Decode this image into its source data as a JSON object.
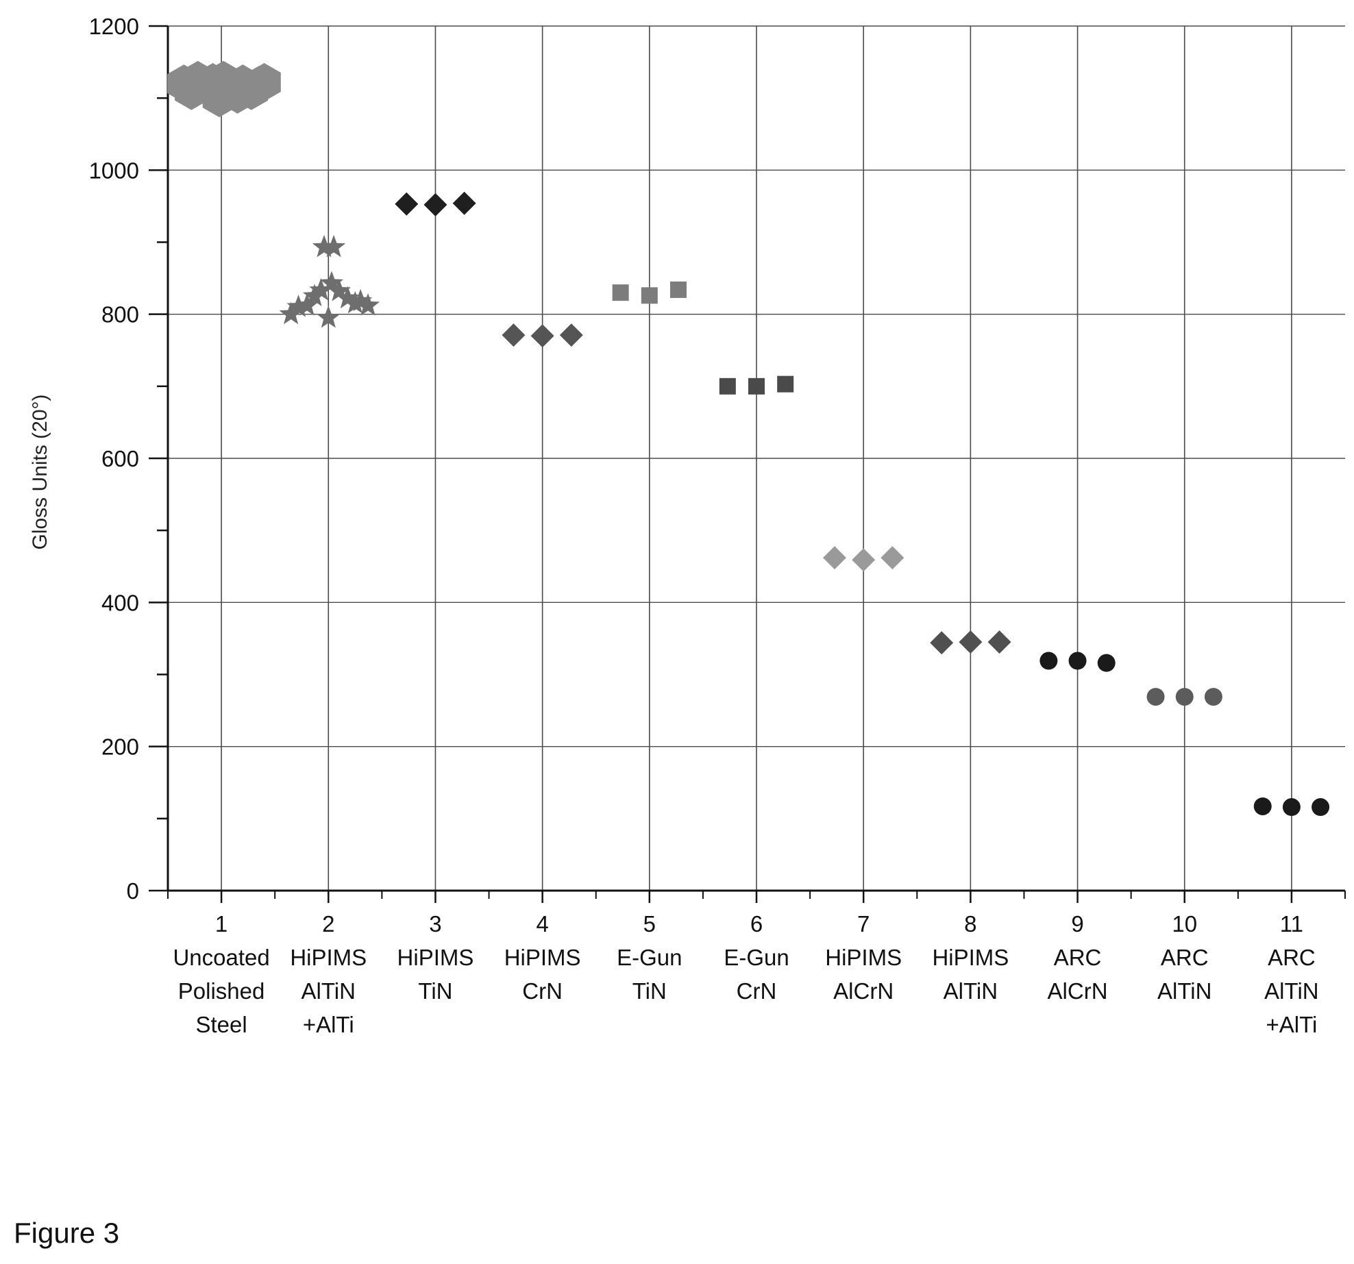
{
  "figure_label": "Figure 3",
  "chart_data": {
    "type": "scatter",
    "title": "",
    "xlabel": "",
    "ylabel": "Gloss Units (20°)",
    "ylim": [
      0,
      1200
    ],
    "yticks": [
      0,
      200,
      400,
      600,
      800,
      1000,
      1200
    ],
    "xlim": [
      0.5,
      11.5
    ],
    "grid": true,
    "categories": [
      {
        "x": 1,
        "lines": [
          "1",
          "Uncoated",
          "Polished",
          "Steel"
        ]
      },
      {
        "x": 2,
        "lines": [
          "2",
          "HiPIMS",
          "AlTiN",
          "+AlTi"
        ]
      },
      {
        "x": 3,
        "lines": [
          "3",
          "HiPIMS",
          "TiN"
        ]
      },
      {
        "x": 4,
        "lines": [
          "4",
          "HiPIMS",
          "CrN"
        ]
      },
      {
        "x": 5,
        "lines": [
          "5",
          "E-Gun",
          "TiN"
        ]
      },
      {
        "x": 6,
        "lines": [
          "6",
          "E-Gun",
          "CrN"
        ]
      },
      {
        "x": 7,
        "lines": [
          "7",
          "HiPIMS",
          "AlCrN"
        ]
      },
      {
        "x": 8,
        "lines": [
          "8",
          "HiPIMS",
          "AlTiN"
        ]
      },
      {
        "x": 9,
        "lines": [
          "9",
          "ARC",
          "AlCrN"
        ]
      },
      {
        "x": 10,
        "lines": [
          "10",
          "ARC",
          "AlTiN"
        ]
      },
      {
        "x": 11,
        "lines": [
          "11",
          "ARC",
          "AlTiN",
          "+AlTi"
        ]
      }
    ],
    "series": [
      {
        "category": 1,
        "marker": "hexagon",
        "color": "#8a8a8a",
        "points": [
          {
            "x": 0.65,
            "y": 1120
          },
          {
            "x": 0.72,
            "y": 1110
          },
          {
            "x": 0.78,
            "y": 1125
          },
          {
            "x": 0.85,
            "y": 1118
          },
          {
            "x": 0.92,
            "y": 1122
          },
          {
            "x": 0.98,
            "y": 1100
          },
          {
            "x": 1.02,
            "y": 1125
          },
          {
            "x": 1.08,
            "y": 1112
          },
          {
            "x": 1.15,
            "y": 1105
          },
          {
            "x": 1.2,
            "y": 1120
          },
          {
            "x": 1.28,
            "y": 1110
          },
          {
            "x": 1.35,
            "y": 1118
          },
          {
            "x": 1.4,
            "y": 1122
          }
        ]
      },
      {
        "category": 2,
        "marker": "star",
        "color": "#6e6e6e",
        "points": [
          {
            "x": 1.65,
            "y": 800
          },
          {
            "x": 1.72,
            "y": 810
          },
          {
            "x": 1.8,
            "y": 812
          },
          {
            "x": 1.87,
            "y": 825
          },
          {
            "x": 1.93,
            "y": 833
          },
          {
            "x": 1.96,
            "y": 893
          },
          {
            "x": 2.0,
            "y": 795
          },
          {
            "x": 2.03,
            "y": 843
          },
          {
            "x": 2.05,
            "y": 893
          },
          {
            "x": 2.1,
            "y": 832
          },
          {
            "x": 2.18,
            "y": 822
          },
          {
            "x": 2.25,
            "y": 815
          },
          {
            "x": 2.3,
            "y": 818
          },
          {
            "x": 2.37,
            "y": 812
          }
        ]
      },
      {
        "category": 3,
        "marker": "diamond",
        "color": "#1f1f1f",
        "points": [
          {
            "x": 2.73,
            "y": 953
          },
          {
            "x": 3.0,
            "y": 952
          },
          {
            "x": 3.27,
            "y": 954
          }
        ]
      },
      {
        "category": 4,
        "marker": "diamond",
        "color": "#555555",
        "points": [
          {
            "x": 3.73,
            "y": 771
          },
          {
            "x": 4.0,
            "y": 770
          },
          {
            "x": 4.27,
            "y": 771
          }
        ]
      },
      {
        "category": 5,
        "marker": "square",
        "color": "#7c7c7c",
        "points": [
          {
            "x": 4.73,
            "y": 830
          },
          {
            "x": 5.0,
            "y": 826
          },
          {
            "x": 5.27,
            "y": 834
          }
        ]
      },
      {
        "category": 6,
        "marker": "square",
        "color": "#4a4a4a",
        "points": [
          {
            "x": 5.73,
            "y": 700
          },
          {
            "x": 6.0,
            "y": 700
          },
          {
            "x": 6.27,
            "y": 703
          }
        ]
      },
      {
        "category": 7,
        "marker": "diamond",
        "color": "#9a9a9a",
        "points": [
          {
            "x": 6.73,
            "y": 462
          },
          {
            "x": 7.0,
            "y": 459
          },
          {
            "x": 7.27,
            "y": 462
          }
        ]
      },
      {
        "category": 8,
        "marker": "diamond",
        "color": "#505050",
        "points": [
          {
            "x": 7.73,
            "y": 344
          },
          {
            "x": 8.0,
            "y": 345
          },
          {
            "x": 8.27,
            "y": 345
          }
        ]
      },
      {
        "category": 9,
        "marker": "circle",
        "color": "#1a1a1a",
        "points": [
          {
            "x": 8.73,
            "y": 319
          },
          {
            "x": 9.0,
            "y": 319
          },
          {
            "x": 9.27,
            "y": 316
          }
        ]
      },
      {
        "category": 10,
        "marker": "circle",
        "color": "#5c5c5c",
        "points": [
          {
            "x": 9.73,
            "y": 269
          },
          {
            "x": 10.0,
            "y": 269
          },
          {
            "x": 10.27,
            "y": 269
          }
        ]
      },
      {
        "category": 11,
        "marker": "circle",
        "color": "#1a1a1a",
        "points": [
          {
            "x": 10.73,
            "y": 117
          },
          {
            "x": 11.0,
            "y": 116
          },
          {
            "x": 11.27,
            "y": 116
          }
        ]
      }
    ]
  }
}
